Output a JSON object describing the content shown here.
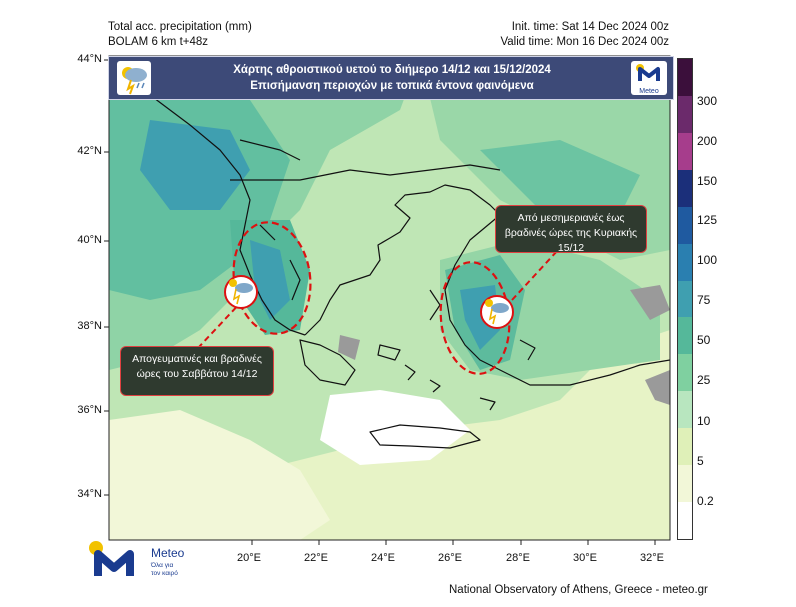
{
  "header": {
    "left_line1": "Total acc. precipitation (mm)",
    "left_line2": "BOLAM 6 km t+48z",
    "right_line1": "Init. time: Sat 14 Dec 2024 00z",
    "right_line2": "Valid time: Mon 16 Dec 2024 00z"
  },
  "banner": {
    "line1": "Χάρτης αθροιστικού υετού το διήμερο 14/12 και 15/12/2024",
    "line2": "Επισήμανση περιοχών με τοπικά έντονα φαινόμενα",
    "logo_text": "Meteo",
    "left_icon": "thunderstorm-icon"
  },
  "callouts": {
    "west": "Απογευματινές και βραδινές ώρες του Σαββάτου 14/12",
    "east": "Από μεσημεριανές έως βραδινές ώρες της Κυριακής 15/12",
    "marker_icon": "thunderstorm-icon"
  },
  "lat_labels": [
    "44°N",
    "42°N",
    "40°N",
    "38°N",
    "36°N",
    "34°N"
  ],
  "lon_labels": [
    "20°E",
    "22°E",
    "24°E",
    "26°E",
    "28°E",
    "30°E",
    "32°E"
  ],
  "colorbar": {
    "labels": [
      "300",
      "200",
      "150",
      "125",
      "100",
      "75",
      "50",
      "25",
      "10",
      "5",
      "0.2"
    ],
    "colors": [
      "#3b0f3b",
      "#6b2a6b",
      "#a63d8c",
      "#1b2f7a",
      "#1f5aa0",
      "#2a7fb0",
      "#3f9fb0",
      "#55b89a",
      "#7fd0a0",
      "#b8e6bf",
      "#dff0b8",
      "#f2f7d8",
      "#ffffff"
    ]
  },
  "footer": {
    "credit": "National Observatory of Athens, Greece - meteo.gr",
    "logo_text": "Meteo",
    "logo_sub_line1": "Όλα για",
    "logo_sub_line2": "τον καιρό"
  }
}
